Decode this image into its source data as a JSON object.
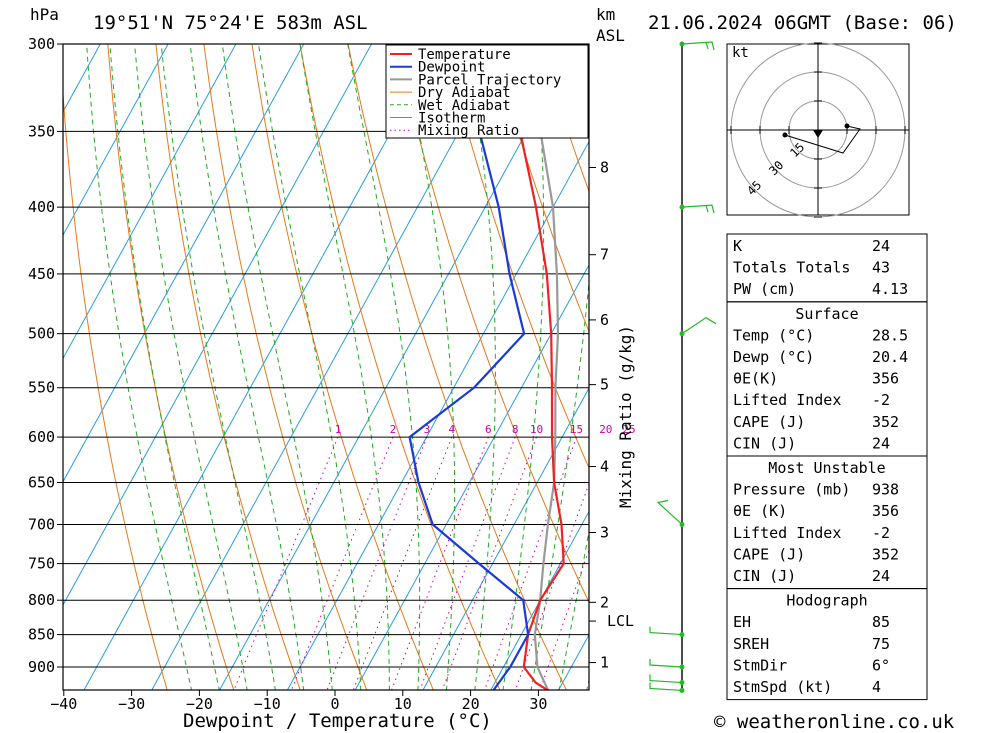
{
  "header": {
    "hpa_unit": "hPa",
    "location": "19°51'N  75°24'E  583m  ASL",
    "km_unit": "km",
    "asl_unit": "ASL",
    "datetime": "21.06.2024  06GMT  (Base: 06)"
  },
  "footer": {
    "copyright": "© weatheronline.co.uk"
  },
  "chart_data": {
    "type": "line",
    "title": "",
    "xlabel": "Dewpoint / Temperature (°C)",
    "ylabel": "hPa",
    "right_label": "Mixing Ratio (g/kg)",
    "x_ticks": [
      -40,
      -30,
      -20,
      -10,
      0,
      10,
      20,
      30
    ],
    "y_ticks": [
      300,
      350,
      400,
      450,
      500,
      550,
      600,
      650,
      700,
      750,
      800,
      850,
      900
    ],
    "km_ticks": [
      {
        "label": "8",
        "p": 373
      },
      {
        "label": "7",
        "p": 435
      },
      {
        "label": "6",
        "p": 488
      },
      {
        "label": "5",
        "p": 547
      },
      {
        "label": "4",
        "p": 632
      },
      {
        "label": "3",
        "p": 710
      },
      {
        "label": "2",
        "p": 803
      },
      {
        "label": "LCL",
        "p": 830
      },
      {
        "label": "1",
        "p": 893
      }
    ],
    "mixing_ratio_labels": [
      "1",
      "2",
      "3",
      "4",
      "6",
      "8",
      "10",
      "15",
      "20",
      "25"
    ],
    "legend": [
      "Temperature",
      "Dewpoint",
      "Parcel Trajectory",
      "Dry Adiabat",
      "Wet Adiabat",
      "Isotherm",
      "Mixing Ratio"
    ],
    "colors": {
      "temperature": "#ee2222",
      "dewpoint": "#1a3ad8",
      "parcel": "#999999",
      "dry_adiabat": "#e27a1c",
      "wet_adiabat": "#22aa22",
      "isotherm": "#2a9de0",
      "mixing_ratio": "#cc00aa",
      "wind": "#22bb22"
    },
    "series": [
      {
        "name": "Temperature",
        "points": [
          [
            938,
            28.5
          ],
          [
            925,
            26
          ],
          [
            900,
            23
          ],
          [
            850,
            21
          ],
          [
            800,
            20
          ],
          [
            750,
            20.5
          ],
          [
            700,
            17
          ],
          [
            650,
            12.5
          ],
          [
            600,
            8.5
          ],
          [
            550,
            4.5
          ],
          [
            500,
            0
          ],
          [
            450,
            -5.5
          ],
          [
            400,
            -12.5
          ],
          [
            350,
            -21
          ],
          [
            300,
            -31
          ]
        ]
      },
      {
        "name": "Dewpoint",
        "points": [
          [
            938,
            20.4
          ],
          [
            900,
            21
          ],
          [
            850,
            21
          ],
          [
            800,
            17.5
          ],
          [
            750,
            8
          ],
          [
            700,
            -2
          ],
          [
            650,
            -7.5
          ],
          [
            600,
            -12.5
          ],
          [
            550,
            -7
          ],
          [
            500,
            -4
          ],
          [
            450,
            -11
          ],
          [
            400,
            -18
          ],
          [
            350,
            -27
          ],
          [
            300,
            -37
          ]
        ]
      },
      {
        "name": "Parcel Trajectory",
        "points": [
          [
            938,
            28.5
          ],
          [
            900,
            25
          ],
          [
            850,
            22
          ],
          [
            800,
            20
          ],
          [
            750,
            17.5
          ],
          [
            700,
            15
          ],
          [
            650,
            12.5
          ],
          [
            600,
            9
          ],
          [
            550,
            5
          ],
          [
            500,
            1
          ],
          [
            450,
            -4
          ],
          [
            400,
            -10
          ],
          [
            350,
            -18
          ],
          [
            300,
            -28
          ]
        ]
      }
    ],
    "wind_barbs_hpa": [
      300,
      400,
      500,
      700,
      850,
      900,
      925,
      938
    ],
    "hodograph": {
      "unit": "kt",
      "rings": [
        "15",
        "30",
        "45"
      ]
    },
    "ylim": [
      300,
      938
    ],
    "xlim": [
      -42,
      38
    ]
  },
  "indices": {
    "rows": [
      {
        "k": "K",
        "v": "24"
      },
      {
        "k": "Totals Totals",
        "v": "43"
      },
      {
        "k": "PW (cm)",
        "v": "4.13"
      }
    ],
    "surface_title": "Surface",
    "surface": [
      {
        "k": "Temp (°C)",
        "v": "28.5"
      },
      {
        "k": "Dewp (°C)",
        "v": "20.4"
      },
      {
        "k": "θE(K)",
        "v": "356"
      },
      {
        "k": "Lifted Index",
        "v": "-2"
      },
      {
        "k": "CAPE (J)",
        "v": "352"
      },
      {
        "k": "CIN (J)",
        "v": "24"
      }
    ],
    "mu_title": "Most Unstable",
    "mu": [
      {
        "k": "Pressure (mb)",
        "v": "938"
      },
      {
        "k": "θE (K)",
        "v": "356"
      },
      {
        "k": "Lifted Index",
        "v": "-2"
      },
      {
        "k": "CAPE (J)",
        "v": "352"
      },
      {
        "k": "CIN (J)",
        "v": "24"
      }
    ],
    "hodo_title": "Hodograph",
    "hodo": [
      {
        "k": "EH",
        "v": "85"
      },
      {
        "k": "SREH",
        "v": "75"
      },
      {
        "k": "StmDir",
        "v": "6°"
      },
      {
        "k": "StmSpd (kt)",
        "v": "4"
      }
    ]
  }
}
